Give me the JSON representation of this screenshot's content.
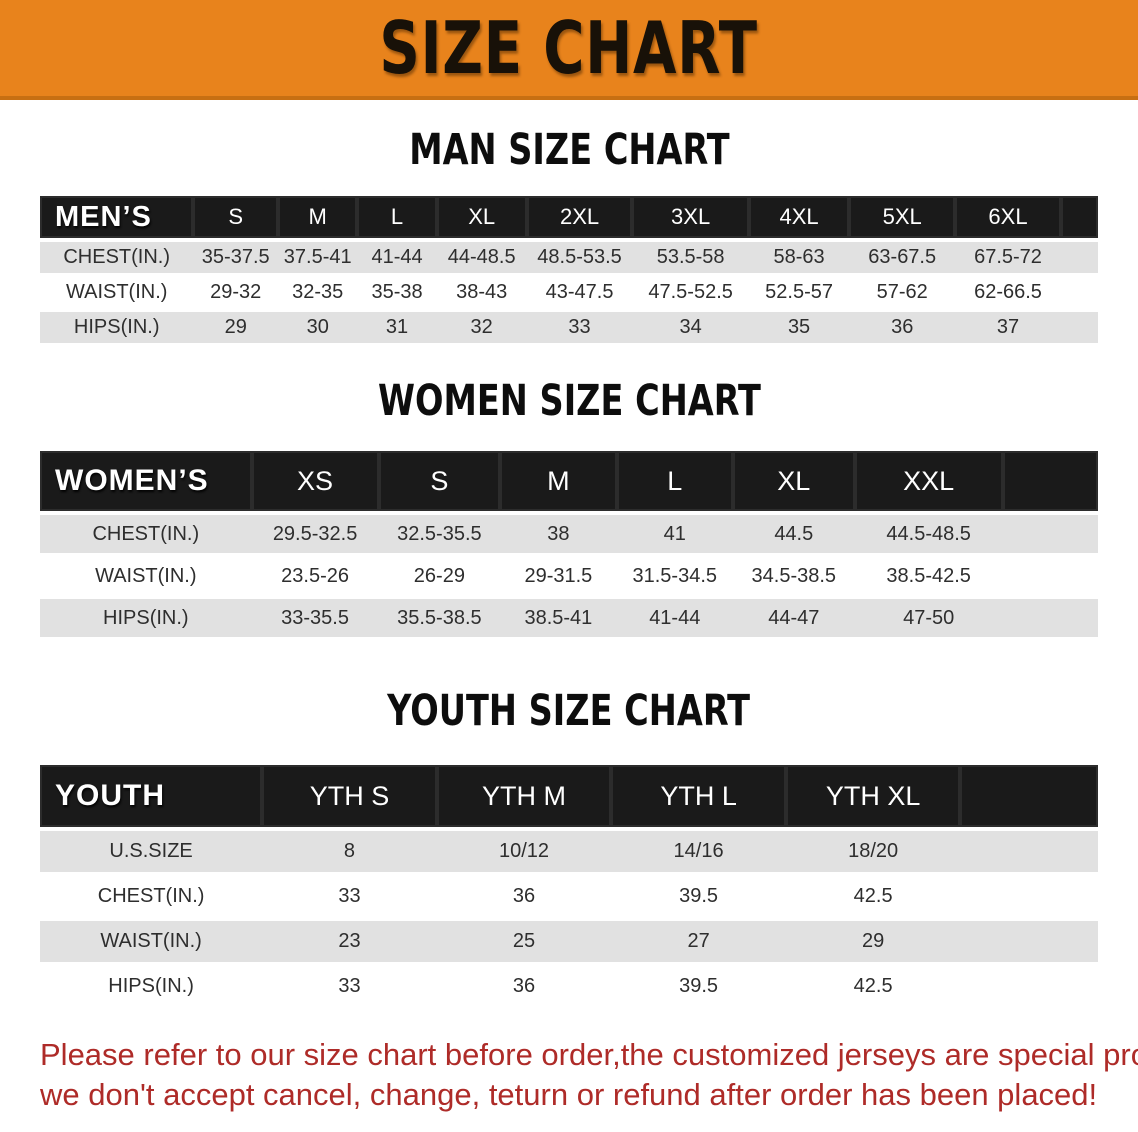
{
  "banner": {
    "title": "SIZE CHART"
  },
  "men": {
    "heading": "MAN SIZE CHART",
    "table": {
      "header_label": "MEN’S",
      "columns": [
        "S",
        "M",
        "L",
        "XL",
        "2XL",
        "3XL",
        "4XL",
        "5XL",
        "6XL"
      ],
      "rows": [
        {
          "label": "CHEST(IN.)",
          "values": [
            "35-37.5",
            "37.5-41",
            "41-44",
            "44-48.5",
            "48.5-53.5",
            "53.5-58",
            "58-63",
            "63-67.5",
            "67.5-72"
          ]
        },
        {
          "label": "WAIST(IN.)",
          "values": [
            "29-32",
            "32-35",
            "35-38",
            "38-43",
            "43-47.5",
            "47.5-52.5",
            "52.5-57",
            "57-62",
            "62-66.5"
          ]
        },
        {
          "label": "HIPS(IN.)",
          "values": [
            "29",
            "30",
            "31",
            "32",
            "33",
            "34",
            "35",
            "36",
            "37"
          ]
        }
      ]
    }
  },
  "women": {
    "heading": "WOMEN SIZE CHART",
    "table": {
      "header_label": "WOMEN’S",
      "columns": [
        "XS",
        "S",
        "M",
        "L",
        "XL",
        "XXL"
      ],
      "rows": [
        {
          "label": "CHEST(IN.)",
          "values": [
            "29.5-32.5",
            "32.5-35.5",
            "38",
            "41",
            "44.5",
            "44.5-48.5"
          ]
        },
        {
          "label": "WAIST(IN.)",
          "values": [
            "23.5-26",
            "26-29",
            "29-31.5",
            "31.5-34.5",
            "34.5-38.5",
            "38.5-42.5"
          ]
        },
        {
          "label": "HIPS(IN.)",
          "values": [
            "33-35.5",
            "35.5-38.5",
            "38.5-41",
            "41-44",
            "44-47",
            "47-50"
          ]
        }
      ]
    }
  },
  "youth": {
    "heading": "YOUTH SIZE CHART",
    "table": {
      "header_label": "YOUTH",
      "columns": [
        "YTH S",
        "YTH M",
        "YTH L",
        "YTH XL"
      ],
      "rows": [
        {
          "label": "U.S.SIZE",
          "values": [
            "8",
            "10/12",
            "14/16",
            "18/20"
          ]
        },
        {
          "label": "CHEST(IN.)",
          "values": [
            "33",
            "36",
            "39.5",
            "42.5"
          ]
        },
        {
          "label": "WAIST(IN.)",
          "values": [
            "23",
            "25",
            "27",
            "29"
          ]
        },
        {
          "label": "HIPS(IN.)",
          "values": [
            "33",
            "36",
            "39.5",
            "42.5"
          ]
        }
      ]
    }
  },
  "footer": {
    "line1": "Please refer to our size chart before order,the customized jerseys are special products,",
    "line2": "we don't accept cancel, change, teturn or refund after order has been placed!"
  },
  "colors": {
    "banner_orange": "#e8831c",
    "header_black": "#1a1a1a",
    "stripe_gray": "#e1e1e1",
    "notice_red": "#ae2b28"
  }
}
